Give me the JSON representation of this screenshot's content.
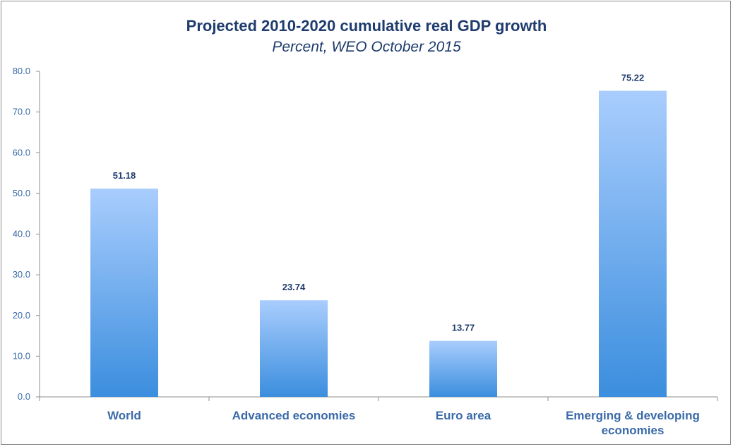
{
  "chart_data": {
    "type": "bar",
    "title": "Projected 2010-2020 cumulative real GDP growth",
    "subtitle": "Percent, WEO October 2015",
    "categories": [
      [
        "World"
      ],
      [
        "Advanced economies"
      ],
      [
        "Euro area"
      ],
      [
        "Emerging & developing",
        "economies"
      ]
    ],
    "values": [
      51.18,
      23.74,
      13.77,
      75.22
    ],
    "data_labels": [
      "51.18",
      "23.74",
      "13.77",
      "75.22"
    ],
    "ylim": [
      0,
      80
    ],
    "yticks": [
      "0.0",
      "10.0",
      "20.0",
      "30.0",
      "40.0",
      "50.0",
      "60.0",
      "70.0",
      "80.0"
    ],
    "ytick_values": [
      0,
      10,
      20,
      30,
      40,
      50,
      60,
      70,
      80
    ],
    "grid": false,
    "legend": "none",
    "colors": {
      "bar_top": "#a9cdfd",
      "bar_bottom": "#3b8ede",
      "axis": "#8c8c8c",
      "tick_text": "#3a6aa8",
      "title_text": "#1f3c6e"
    }
  }
}
